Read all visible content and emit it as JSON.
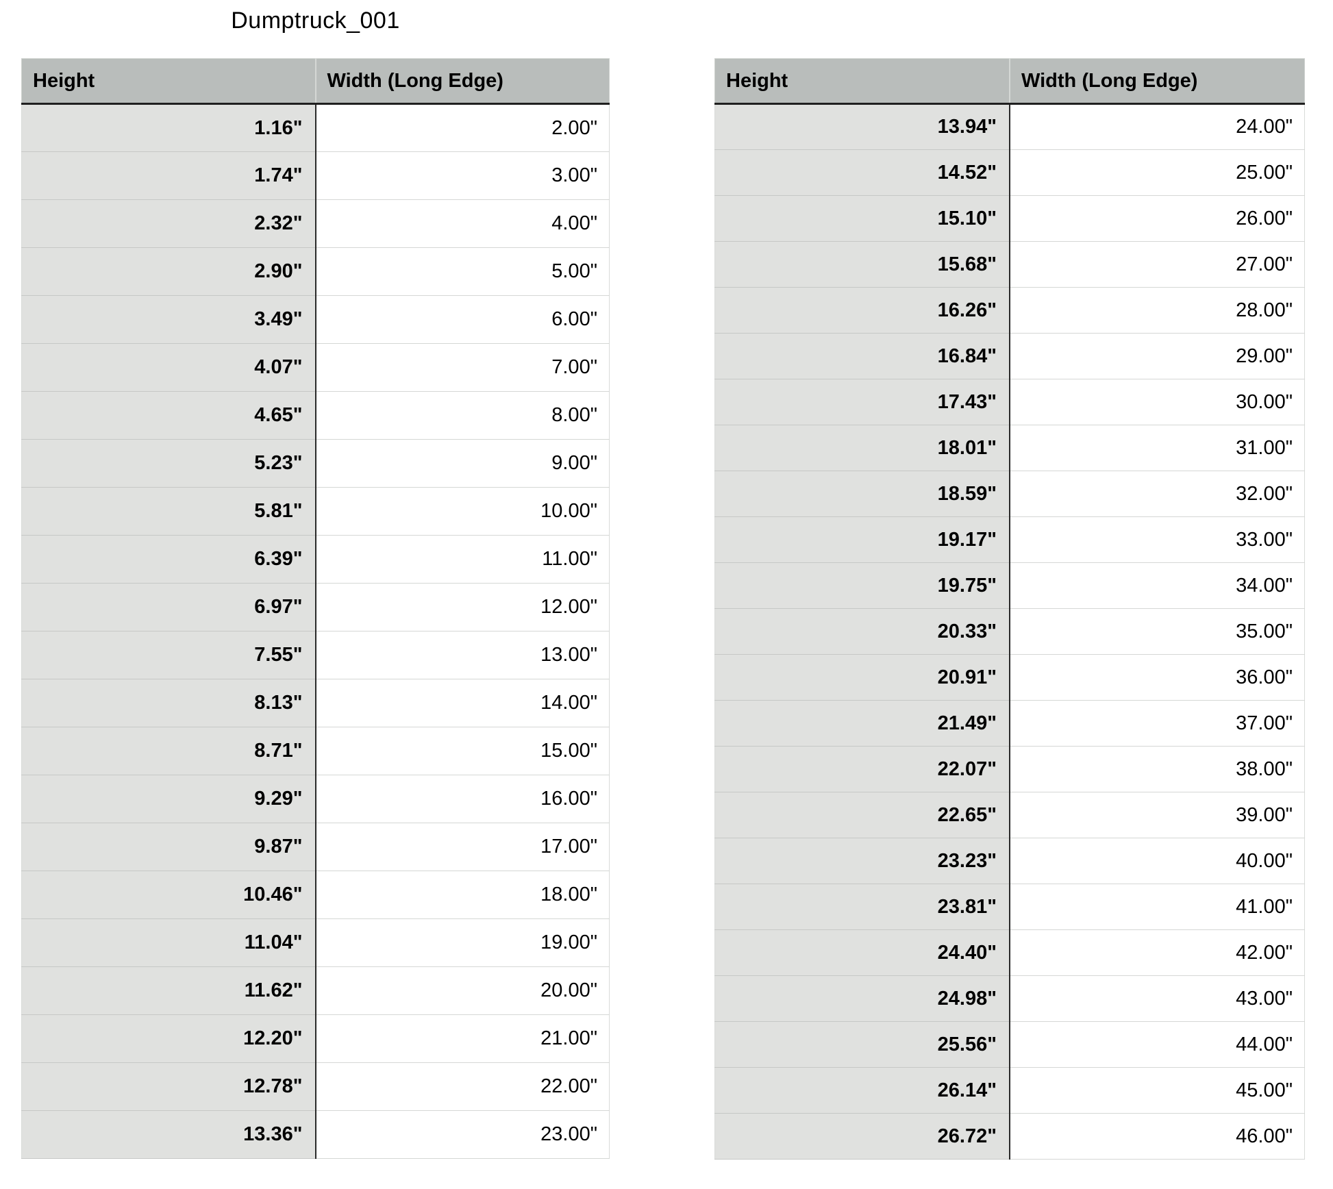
{
  "title": "Dumptruck_001",
  "columns": [
    "Height",
    "Width (Long Edge)"
  ],
  "colors": {
    "header_bg": "#b9bdbb",
    "height_cell_bg": "#e0e1df",
    "width_cell_bg": "#ffffff",
    "header_rule": "#1f1f1f",
    "column_divider": "#2a2a2a",
    "row_separator": "#c6c8c6"
  },
  "tables": [
    {
      "rows": [
        [
          "1.16\"",
          "2.00\""
        ],
        [
          "1.74\"",
          "3.00\""
        ],
        [
          "2.32\"",
          "4.00\""
        ],
        [
          "2.90\"",
          "5.00\""
        ],
        [
          "3.49\"",
          "6.00\""
        ],
        [
          "4.07\"",
          "7.00\""
        ],
        [
          "4.65\"",
          "8.00\""
        ],
        [
          "5.23\"",
          "9.00\""
        ],
        [
          "5.81\"",
          "10.00\""
        ],
        [
          "6.39\"",
          "11.00\""
        ],
        [
          "6.97\"",
          "12.00\""
        ],
        [
          "7.55\"",
          "13.00\""
        ],
        [
          "8.13\"",
          "14.00\""
        ],
        [
          "8.71\"",
          "15.00\""
        ],
        [
          "9.29\"",
          "16.00\""
        ],
        [
          "9.87\"",
          "17.00\""
        ],
        [
          "10.46\"",
          "18.00\""
        ],
        [
          "11.04\"",
          "19.00\""
        ],
        [
          "11.62\"",
          "20.00\""
        ],
        [
          "12.20\"",
          "21.00\""
        ],
        [
          "12.78\"",
          "22.00\""
        ],
        [
          "13.36\"",
          "23.00\""
        ]
      ]
    },
    {
      "rows": [
        [
          "13.94\"",
          "24.00\""
        ],
        [
          "14.52\"",
          "25.00\""
        ],
        [
          "15.10\"",
          "26.00\""
        ],
        [
          "15.68\"",
          "27.00\""
        ],
        [
          "16.26\"",
          "28.00\""
        ],
        [
          "16.84\"",
          "29.00\""
        ],
        [
          "17.43\"",
          "30.00\""
        ],
        [
          "18.01\"",
          "31.00\""
        ],
        [
          "18.59\"",
          "32.00\""
        ],
        [
          "19.17\"",
          "33.00\""
        ],
        [
          "19.75\"",
          "34.00\""
        ],
        [
          "20.33\"",
          "35.00\""
        ],
        [
          "20.91\"",
          "36.00\""
        ],
        [
          "21.49\"",
          "37.00\""
        ],
        [
          "22.07\"",
          "38.00\""
        ],
        [
          "22.65\"",
          "39.00\""
        ],
        [
          "23.23\"",
          "40.00\""
        ],
        [
          "23.81\"",
          "41.00\""
        ],
        [
          "24.40\"",
          "42.00\""
        ],
        [
          "24.98\"",
          "43.00\""
        ],
        [
          "25.56\"",
          "44.00\""
        ],
        [
          "26.14\"",
          "45.00\""
        ],
        [
          "26.72\"",
          "46.00\""
        ]
      ]
    }
  ]
}
